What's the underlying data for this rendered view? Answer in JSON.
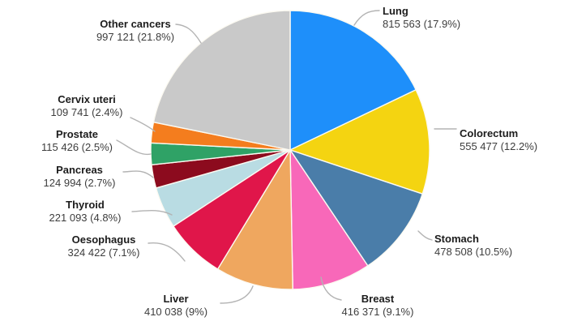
{
  "chart_data": {
    "type": "pie",
    "title": "",
    "start_angle_deg": -90,
    "direction": "clockwise",
    "separator_color": "#fcfaf2",
    "leader_line_color": "#b3b3b3",
    "legend_position": "around (callout labels with leader lines)",
    "slices": [
      {
        "label": "Lung",
        "value": 815563,
        "pct": 17.9,
        "display": "815 563 (17.9%)",
        "color": "#1e8ffa"
      },
      {
        "label": "Colorectum",
        "value": 555477,
        "pct": 12.2,
        "display": "555 477 (12.2%)",
        "color": "#f4d411"
      },
      {
        "label": "Stomach",
        "value": 478508,
        "pct": 10.5,
        "display": "478 508 (10.5%)",
        "color": "#4a7da9"
      },
      {
        "label": "Breast",
        "value": 416371,
        "pct": 9.1,
        "display": "416 371 (9.1%)",
        "color": "#f868b9"
      },
      {
        "label": "Liver",
        "value": 410038,
        "pct": 9.0,
        "display": "410 038 (9%)",
        "color": "#efa75f"
      },
      {
        "label": "Oesophagus",
        "value": 324422,
        "pct": 7.1,
        "display": "324 422 (7.1%)",
        "color": "#e0164a"
      },
      {
        "label": "Thyroid",
        "value": 221093,
        "pct": 4.8,
        "display": "221 093 (4.8%)",
        "color": "#b9dce3"
      },
      {
        "label": "Pancreas",
        "value": 124994,
        "pct": 2.7,
        "display": "124 994 (2.7%)",
        "color": "#8c0b1e"
      },
      {
        "label": "Prostate",
        "value": 115426,
        "pct": 2.5,
        "display": "115 426 (2.5%)",
        "color": "#2fa266"
      },
      {
        "label": "Cervix uteri",
        "value": 109741,
        "pct": 2.4,
        "display": "109 741 (2.4%)",
        "color": "#f47d1e"
      },
      {
        "label": "Other cancers",
        "value": 997121,
        "pct": 21.8,
        "display": "997 121 (21.8%)",
        "color": "#c9c9c9"
      }
    ]
  }
}
